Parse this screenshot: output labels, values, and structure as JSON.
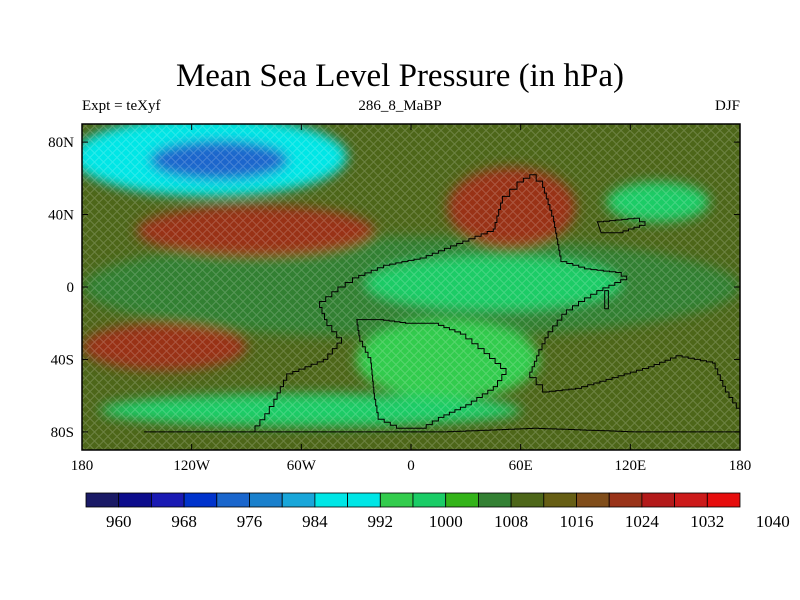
{
  "title": "Mean Sea Level Pressure (in hPa)",
  "subtitle_left": "Expt = teXyf",
  "subtitle_center": "286_8_MaBP",
  "subtitle_right": "DJF",
  "map": {
    "lon_range": [
      -180,
      180
    ],
    "lat_range": [
      -90,
      90
    ],
    "x_ticks": [
      {
        "lon": -180,
        "label": "180"
      },
      {
        "lon": -120,
        "label": "120W"
      },
      {
        "lon": -60,
        "label": "60W"
      },
      {
        "lon": 0,
        "label": "0"
      },
      {
        "lon": 60,
        "label": "60E"
      },
      {
        "lon": 120,
        "label": "120E"
      },
      {
        "lon": 180,
        "label": "180"
      }
    ],
    "y_ticks": [
      {
        "lat": 80,
        "label": "80N"
      },
      {
        "lat": 40,
        "label": "40N"
      },
      {
        "lat": 0,
        "label": "0"
      },
      {
        "lat": -40,
        "label": "40S"
      },
      {
        "lat": -80,
        "label": "80S"
      }
    ],
    "pressure_regions": [
      {
        "name": "tethys-equatorial-belt",
        "level": 1004,
        "cx": 0,
        "cy": 0,
        "rx": 180,
        "ry": 28
      },
      {
        "name": "north-polar-low",
        "level": 984,
        "cx": -110,
        "cy": 72,
        "rx": 75,
        "ry": 22
      },
      {
        "name": "north-polar-low-core",
        "level": 972,
        "cx": -105,
        "cy": 70,
        "rx": 38,
        "ry": 11
      },
      {
        "name": "north-subtropical-high-west",
        "level": 1020,
        "cx": -85,
        "cy": 31,
        "rx": 65,
        "ry": 14
      },
      {
        "name": "north-subtropical-high-east",
        "level": 1020,
        "cx": 55,
        "cy": 44,
        "rx": 35,
        "ry": 22
      },
      {
        "name": "northeast-ocean-low",
        "level": 996,
        "cx": 135,
        "cy": 47,
        "rx": 28,
        "ry": 11
      },
      {
        "name": "equatorial-low",
        "level": 996,
        "cx": 45,
        "cy": 2,
        "rx": 70,
        "ry": 15
      },
      {
        "name": "south-subtropical-high",
        "level": 1020,
        "cx": -135,
        "cy": -33,
        "rx": 45,
        "ry": 13
      },
      {
        "name": "south-midlatitude-low",
        "level": 992,
        "cx": 20,
        "cy": -40,
        "rx": 50,
        "ry": 22
      },
      {
        "name": "south-polar-trough",
        "level": 996,
        "cx": -55,
        "cy": -68,
        "rx": 115,
        "ry": 9
      }
    ],
    "coastlines": [
      {
        "name": "pangaea-coastline",
        "points": [
          [
            -146,
            -80
          ],
          [
            -88,
            -80
          ],
          [
            -80,
            -70
          ],
          [
            -75,
            -62
          ],
          [
            -68,
            -48
          ],
          [
            -48,
            -40
          ],
          [
            -38,
            -28
          ],
          [
            -46,
            -18
          ],
          [
            -50,
            -8
          ],
          [
            -40,
            0
          ],
          [
            -32,
            5
          ],
          [
            -15,
            12
          ],
          [
            5,
            16
          ],
          [
            25,
            24
          ],
          [
            45,
            32
          ],
          [
            50,
            50
          ],
          [
            58,
            58
          ],
          [
            65,
            62
          ],
          [
            72,
            55
          ],
          [
            78,
            36
          ],
          [
            82,
            14
          ],
          [
            95,
            10
          ],
          [
            112,
            8
          ],
          [
            118,
            4
          ],
          [
            105,
            -2
          ],
          [
            95,
            -8
          ],
          [
            85,
            -15
          ],
          [
            75,
            -28
          ],
          [
            70,
            -38
          ],
          [
            65,
            -50
          ],
          [
            72,
            -58
          ],
          [
            90,
            -56
          ],
          [
            110,
            -50
          ],
          [
            130,
            -44
          ],
          [
            145,
            -38
          ],
          [
            165,
            -42
          ],
          [
            172,
            -58
          ],
          [
            180,
            -70
          ],
          [
            180,
            -80
          ],
          [
            125,
            -80
          ],
          [
            70,
            -78
          ],
          [
            20,
            -80
          ]
        ]
      },
      {
        "name": "inner-sea-coastline",
        "points": [
          [
            -30,
            -18
          ],
          [
            -28,
            -30
          ],
          [
            -22,
            -42
          ],
          [
            -20,
            -62
          ],
          [
            -18,
            -73
          ],
          [
            -8,
            -78
          ],
          [
            5,
            -78
          ],
          [
            15,
            -72
          ],
          [
            30,
            -65
          ],
          [
            45,
            -55
          ],
          [
            52,
            -45
          ],
          [
            40,
            -34
          ],
          [
            30,
            -26
          ],
          [
            15,
            -20
          ],
          [
            0,
            -20
          ],
          [
            -15,
            -18
          ]
        ]
      },
      {
        "name": "north-island",
        "points": [
          [
            102,
            36
          ],
          [
            122,
            38
          ],
          [
            128,
            34
          ],
          [
            116,
            30
          ],
          [
            104,
            30
          ]
        ]
      },
      {
        "name": "equatorial-island",
        "points": [
          [
            106,
            -2
          ],
          [
            108,
            -2
          ],
          [
            108,
            -12
          ],
          [
            106,
            -12
          ]
        ]
      }
    ]
  },
  "colorbar": {
    "colors": [
      "#1a1a66",
      "#0d0d8c",
      "#1a1ab3",
      "#0033cc",
      "#1a66cc",
      "#1a80cc",
      "#19a6d9",
      "#00e6e6",
      "#00e6e6",
      "#33cc4d",
      "#1acc66",
      "#33b319",
      "#338033",
      "#4d6619",
      "#665e14",
      "#804d1a",
      "#993319",
      "#b31a1a",
      "#cc1a1a",
      "#e60d0d"
    ],
    "labels": [
      "960",
      "968",
      "976",
      "984",
      "992",
      "1000",
      "1008",
      "1016",
      "1024",
      "1032",
      "1040"
    ]
  }
}
